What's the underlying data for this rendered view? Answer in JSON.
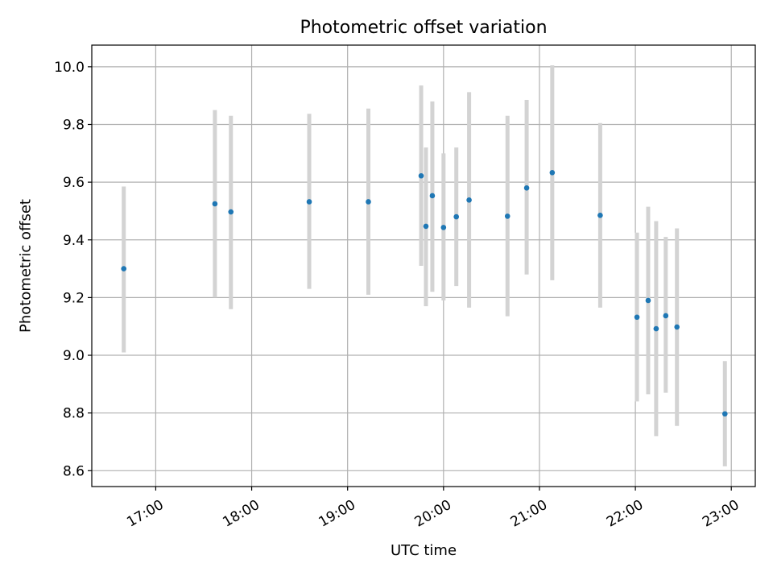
{
  "chart_data": {
    "type": "scatter",
    "title": "Photometric offset variation",
    "xlabel": "UTC time",
    "ylabel": "Photometric offset",
    "xlim": [
      "16:20",
      "23:15"
    ],
    "ylim": [
      8.545,
      10.075
    ],
    "xticks": [
      "17:00",
      "18:00",
      "19:00",
      "20:00",
      "21:00",
      "22:00",
      "23:00"
    ],
    "yticks": [
      "8.6",
      "8.8",
      "9.0",
      "9.2",
      "9.4",
      "9.6",
      "9.8",
      "10.0"
    ],
    "grid": true,
    "point_color": "#1f77b4",
    "errorbar_color": "#d3d3d3",
    "points": [
      {
        "x": "16:40",
        "y": 9.3,
        "ylow": 9.01,
        "yhigh": 9.585
      },
      {
        "x": "17:37",
        "y": 9.525,
        "ylow": 9.2,
        "yhigh": 9.85
      },
      {
        "x": "17:47",
        "y": 9.497,
        "ylow": 9.16,
        "yhigh": 9.83
      },
      {
        "x": "18:36",
        "y": 9.532,
        "ylow": 9.23,
        "yhigh": 9.837
      },
      {
        "x": "19:13",
        "y": 9.532,
        "ylow": 9.21,
        "yhigh": 9.855
      },
      {
        "x": "19:46",
        "y": 9.622,
        "ylow": 9.31,
        "yhigh": 9.935
      },
      {
        "x": "19:49",
        "y": 9.447,
        "ylow": 9.17,
        "yhigh": 9.72
      },
      {
        "x": "19:53",
        "y": 9.553,
        "ylow": 9.22,
        "yhigh": 9.88
      },
      {
        "x": "20:00",
        "y": 9.443,
        "ylow": 9.19,
        "yhigh": 9.7
      },
      {
        "x": "20:08",
        "y": 9.48,
        "ylow": 9.24,
        "yhigh": 9.72
      },
      {
        "x": "20:16",
        "y": 9.538,
        "ylow": 9.165,
        "yhigh": 9.912
      },
      {
        "x": "20:40",
        "y": 9.482,
        "ylow": 9.135,
        "yhigh": 9.83
      },
      {
        "x": "20:52",
        "y": 9.58,
        "ylow": 9.28,
        "yhigh": 9.885
      },
      {
        "x": "21:08",
        "y": 9.633,
        "ylow": 9.26,
        "yhigh": 10.005
      },
      {
        "x": "21:38",
        "y": 9.485,
        "ylow": 9.165,
        "yhigh": 9.805
      },
      {
        "x": "22:01",
        "y": 9.132,
        "ylow": 8.84,
        "yhigh": 9.425
      },
      {
        "x": "22:08",
        "y": 9.19,
        "ylow": 8.865,
        "yhigh": 9.515
      },
      {
        "x": "22:13",
        "y": 9.092,
        "ylow": 8.72,
        "yhigh": 9.465
      },
      {
        "x": "22:19",
        "y": 9.137,
        "ylow": 8.87,
        "yhigh": 9.41
      },
      {
        "x": "22:26",
        "y": 9.098,
        "ylow": 8.755,
        "yhigh": 9.44
      },
      {
        "x": "22:56",
        "y": 8.797,
        "ylow": 8.615,
        "yhigh": 8.98
      }
    ]
  }
}
